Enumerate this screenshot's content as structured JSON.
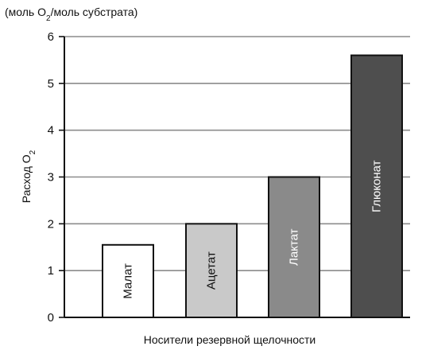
{
  "chart_data": {
    "type": "bar",
    "units_note": "(моль O",
    "units_note_sub": "2",
    "units_note_tail": "/моль субстрата)",
    "ylabel": "Расход O",
    "ylabel_sub": "2",
    "xlabel": "Носители резервной щелочности",
    "ylim": [
      0,
      6
    ],
    "yticks": [
      0,
      1,
      2,
      3,
      4,
      5,
      6
    ],
    "grid": true,
    "categories": [
      "Малат",
      "Ацетат",
      "Лактат",
      "Глюконат"
    ],
    "values": [
      1.55,
      2.0,
      3.0,
      5.6
    ],
    "bar_colors": [
      "#ffffff",
      "#c9c9c9",
      "#8a8a8a",
      "#4e4e4e"
    ],
    "label_colors": [
      "#111111",
      "#111111",
      "#ffffff",
      "#ffffff"
    ]
  }
}
